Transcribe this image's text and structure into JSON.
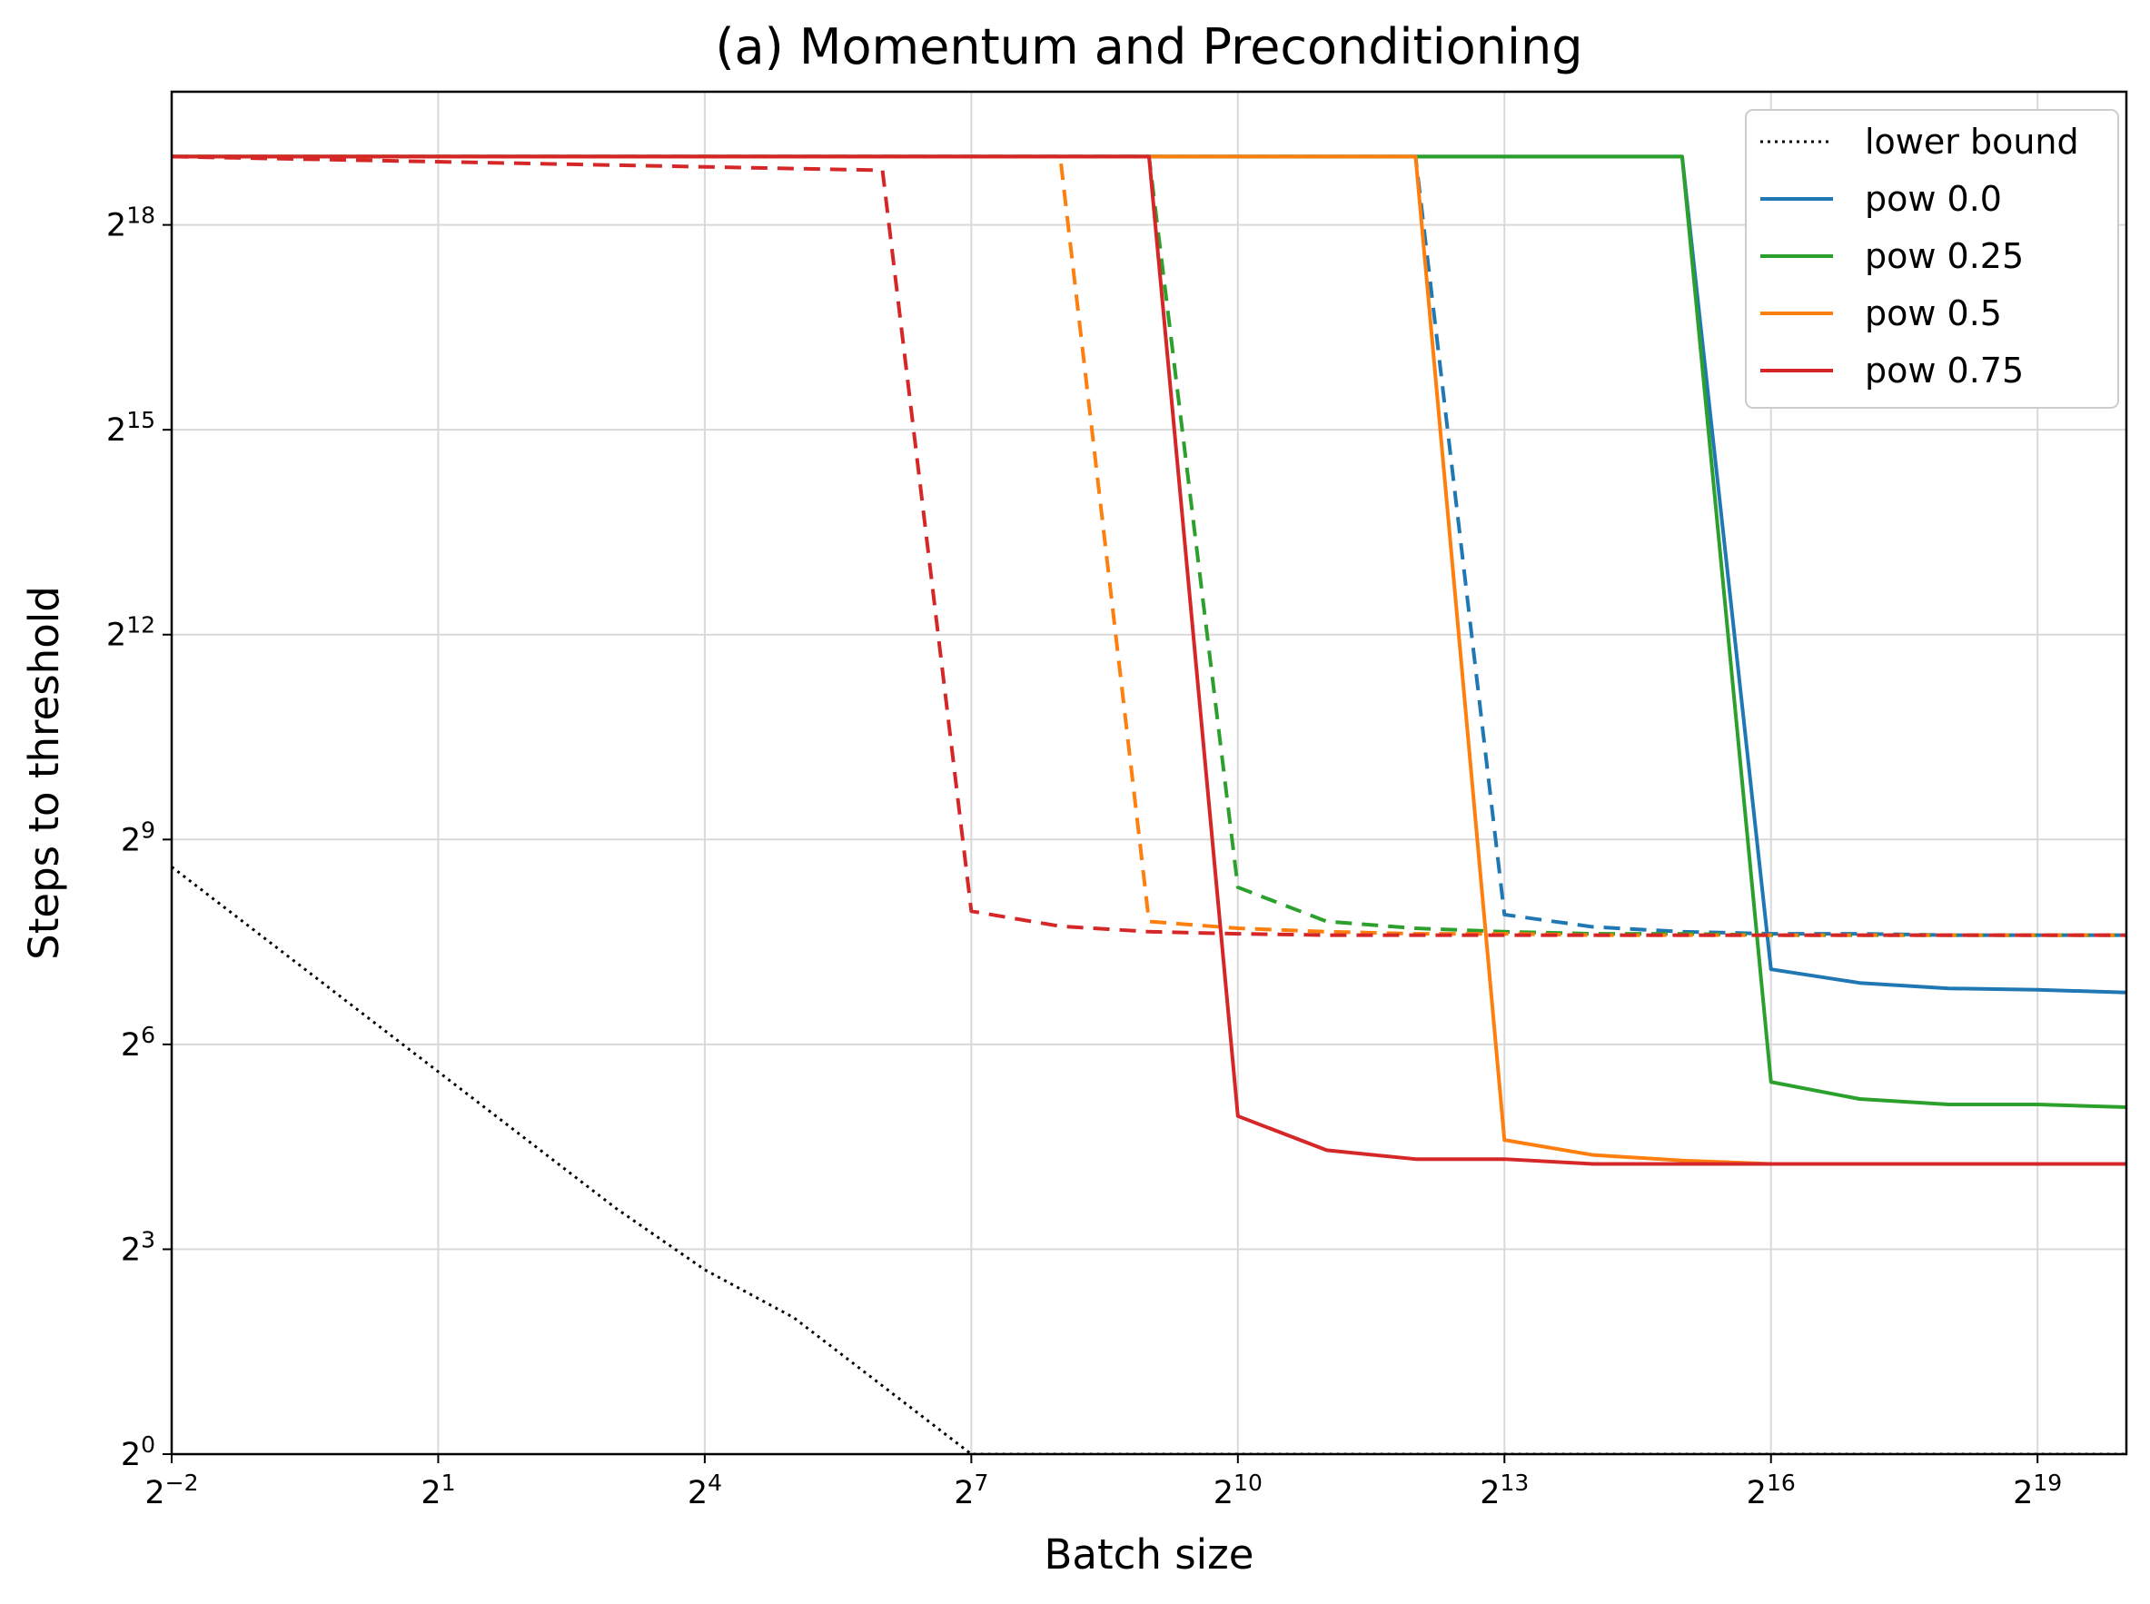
{
  "chart_data": {
    "type": "line",
    "title": "(a) Momentum and Preconditioning",
    "xlabel": "Batch size",
    "ylabel": "Steps to threshold",
    "x_scale": "log2",
    "y_scale": "log2",
    "xlim_exponents": [
      -2,
      20
    ],
    "ylim_exponents": [
      0,
      19.95
    ],
    "x_ticks": [
      {
        "base": "2",
        "exp": "−2"
      },
      {
        "base": "2",
        "exp": "1"
      },
      {
        "base": "2",
        "exp": "4"
      },
      {
        "base": "2",
        "exp": "7"
      },
      {
        "base": "2",
        "exp": "10"
      },
      {
        "base": "2",
        "exp": "13"
      },
      {
        "base": "2",
        "exp": "16"
      },
      {
        "base": "2",
        "exp": "19"
      }
    ],
    "y_ticks": [
      {
        "base": "2",
        "exp": "0"
      },
      {
        "base": "2",
        "exp": "3"
      },
      {
        "base": "2",
        "exp": "6"
      },
      {
        "base": "2",
        "exp": "9"
      },
      {
        "base": "2",
        "exp": "12"
      },
      {
        "base": "2",
        "exp": "15"
      },
      {
        "base": "2",
        "exp": "18"
      }
    ],
    "grid": true,
    "legend_position": "top-right",
    "legend": [
      {
        "label": "lower bound",
        "color": "#000000",
        "style": "dotted"
      },
      {
        "label": "pow 0.0",
        "color": "#1f77b4",
        "style": "solid"
      },
      {
        "label": "pow 0.25",
        "color": "#2ca02c",
        "style": "solid"
      },
      {
        "label": "pow 0.5",
        "color": "#ff7f0e",
        "style": "solid"
      },
      {
        "label": "pow 0.75",
        "color": "#d62728",
        "style": "solid"
      }
    ],
    "series": [
      {
        "name": "lower bound",
        "color": "#000000",
        "style": "dotted",
        "x_exponents": [
          -2,
          -1,
          0,
          1,
          2,
          3,
          4,
          5,
          6,
          7,
          8,
          9,
          10,
          11,
          12,
          13,
          14,
          15,
          16,
          17,
          18,
          19,
          20
        ],
        "y_exponents": [
          8.6,
          7.6,
          6.6,
          5.6,
          4.6,
          3.6,
          2.7,
          2.0,
          1.0,
          0.0,
          0.0,
          0.0,
          0.0,
          0.0,
          0.0,
          0.0,
          0.0,
          0.0,
          0.0,
          0.0,
          0.0,
          0.0,
          0.0
        ]
      },
      {
        "name": "pow 0.0",
        "color": "#1f77b4",
        "style": "solid",
        "x_exponents": [
          -2,
          15,
          16,
          17,
          18,
          19,
          20
        ],
        "y_exponents": [
          19.0,
          19.0,
          7.1,
          6.9,
          6.82,
          6.8,
          6.76
        ]
      },
      {
        "color": "#1f77b4",
        "style": "dashed",
        "x_exponents": [
          -2,
          12,
          13,
          14,
          15,
          16,
          17,
          18,
          19,
          20
        ],
        "y_exponents": [
          19.0,
          19.0,
          7.9,
          7.72,
          7.65,
          7.62,
          7.62,
          7.6,
          7.6,
          7.6
        ]
      },
      {
        "name": "pow 0.25",
        "color": "#2ca02c",
        "style": "solid",
        "x_exponents": [
          -2,
          15,
          16,
          17,
          18,
          19,
          20
        ],
        "y_exponents": [
          19.0,
          19.0,
          5.45,
          5.2,
          5.12,
          5.12,
          5.08
        ]
      },
      {
        "color": "#2ca02c",
        "style": "dashed",
        "x_exponents": [
          -2,
          9,
          10,
          11,
          12,
          13,
          14,
          15,
          16,
          17,
          18,
          19,
          20
        ],
        "y_exponents": [
          19.0,
          19.0,
          8.3,
          7.8,
          7.7,
          7.65,
          7.62,
          7.62,
          7.6,
          7.6,
          7.6,
          7.6,
          7.6
        ]
      },
      {
        "name": "pow 0.5",
        "color": "#ff7f0e",
        "style": "solid",
        "x_exponents": [
          -2,
          12,
          13,
          14,
          15,
          16,
          17,
          18,
          19,
          20
        ],
        "y_exponents": [
          19.0,
          19.0,
          4.6,
          4.38,
          4.3,
          4.25,
          4.25,
          4.25,
          4.25,
          4.25
        ]
      },
      {
        "color": "#ff7f0e",
        "style": "dashed",
        "x_exponents": [
          -2,
          8,
          9,
          10,
          11,
          12,
          13,
          14,
          15,
          16,
          17,
          18,
          19,
          20
        ],
        "y_exponents": [
          19.0,
          19.0,
          7.8,
          7.7,
          7.65,
          7.62,
          7.62,
          7.6,
          7.6,
          7.6,
          7.6,
          7.6,
          7.6,
          7.6
        ]
      },
      {
        "name": "pow 0.75",
        "color": "#d62728",
        "style": "solid",
        "x_exponents": [
          -2,
          9,
          10,
          11,
          12,
          13,
          14,
          15,
          16,
          17,
          18,
          19,
          20
        ],
        "y_exponents": [
          19.0,
          19.0,
          4.95,
          4.45,
          4.32,
          4.32,
          4.25,
          4.25,
          4.25,
          4.25,
          4.25,
          4.25,
          4.25
        ]
      },
      {
        "color": "#d62728",
        "style": "dashed",
        "x_exponents": [
          -2,
          6,
          7,
          8,
          9,
          10,
          11,
          12,
          13,
          14,
          15,
          16,
          17,
          18,
          19,
          20
        ],
        "y_exponents": [
          19.0,
          18.8,
          7.95,
          7.73,
          7.65,
          7.62,
          7.6,
          7.6,
          7.6,
          7.6,
          7.6,
          7.6,
          7.6,
          7.6,
          7.6,
          7.6
        ]
      }
    ]
  }
}
